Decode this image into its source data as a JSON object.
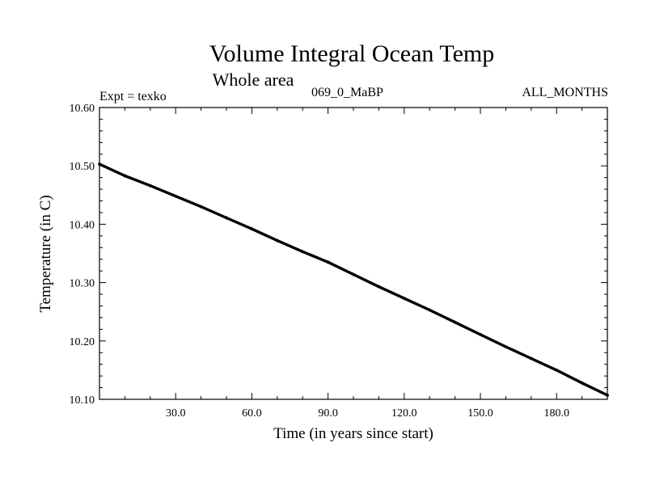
{
  "chart_data": {
    "type": "line",
    "title": "Volume Integral Ocean Temp",
    "subtitle": "Whole area",
    "expt_label": "Expt = texko",
    "run_label": "069_0_MaBP",
    "period_label": "ALL_MONTHS",
    "xlabel": "Time (in years since start)",
    "ylabel": "Temperature (in C)",
    "xlim": [
      0,
      200
    ],
    "ylim": [
      10.1,
      10.6
    ],
    "xticks": [
      30,
      60,
      90,
      120,
      150,
      180
    ],
    "xtick_labels": [
      "30.0",
      "60.0",
      "90.0",
      "120.0",
      "150.0",
      "180.0"
    ],
    "yticks": [
      10.1,
      10.2,
      10.3,
      10.4,
      10.5,
      10.6
    ],
    "ytick_labels": [
      "10.10",
      "10.20",
      "10.30",
      "10.40",
      "10.50",
      "10.60"
    ],
    "grid": false,
    "series": [
      {
        "name": "Volume Integral Ocean Temp",
        "x": [
          0,
          10,
          20,
          30,
          40,
          50,
          60,
          70,
          80,
          90,
          100,
          110,
          120,
          130,
          140,
          150,
          160,
          170,
          180,
          190,
          200
        ],
        "y": [
          10.503,
          10.483,
          10.466,
          10.448,
          10.43,
          10.411,
          10.392,
          10.372,
          10.353,
          10.335,
          10.314,
          10.293,
          10.273,
          10.253,
          10.232,
          10.211,
          10.19,
          10.17,
          10.15,
          10.128,
          10.107
        ]
      }
    ]
  }
}
